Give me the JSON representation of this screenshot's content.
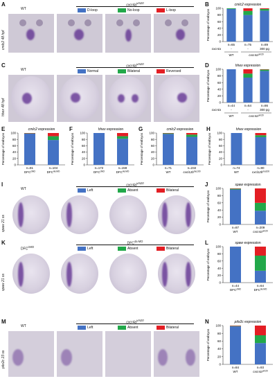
{
  "colors": {
    "blue": "#4472C4",
    "green": "#22A84A",
    "red": "#E31E24"
  },
  "panels": {
    "A": {
      "letter": "A",
      "ylabel": "cmlc2 48 hpf",
      "wt": "WT",
      "geno": "cxcr4a",
      "sup": "um20",
      "legend": [
        "D-loop",
        "No-loop",
        "L-loop"
      ]
    },
    "B": {
      "letter": "B"
    },
    "C": {
      "letter": "C",
      "ylabel": "hhex 48 hpf",
      "wt": "WT",
      "geno": "cxcr4a",
      "sup": "um20",
      "legend": [
        "Normal",
        "Bilateral",
        "Reversed"
      ]
    },
    "D": {
      "letter": "D"
    },
    "E": {
      "letter": "E"
    },
    "F": {
      "letter": "F"
    },
    "G": {
      "letter": "G"
    },
    "H": {
      "letter": "H"
    },
    "I": {
      "letter": "I",
      "ylabel": "spaw 21 ss",
      "wt": "WT",
      "geno": "cxcr4a",
      "sup": "um20",
      "legend": [
        "Left",
        "Absent",
        "Bilateral"
      ]
    },
    "J": {
      "letter": "J"
    },
    "K": {
      "letter": "K",
      "ylabel": "spaw 21 ss",
      "wt": "DFC",
      "wt_sup": "cMO",
      "geno": "DFC",
      "sup": "4a MO",
      "legend": [
        "Left",
        "Absent",
        "Bilateral"
      ]
    },
    "L": {
      "letter": "L"
    },
    "M": {
      "letter": "M",
      "ylabel": "pitx2c 23 ss",
      "wt": "WT",
      "geno": "cxcr4a",
      "sup": "um20",
      "legend": [
        "Left",
        "Absent",
        "Bilateral"
      ]
    },
    "N": {
      "letter": "N"
    }
  },
  "chart_data": [
    {
      "id": "B",
      "type": "bar",
      "title": "cmlc2 expression",
      "ylabel": "Percentage of embryos",
      "ylim": [
        0,
        100
      ],
      "yticks": [
        0,
        20,
        40,
        60,
        80,
        100
      ],
      "categories": [
        "n=65",
        "n=75",
        "n=89"
      ],
      "sublabels": [
        [
          "-",
          "-",
          "300 pg"
        ]
      ],
      "rowlabel": "cxcr4a",
      "groups": [
        {
          "label": "WT",
          "span": [
            0,
            0
          ]
        },
        {
          "label": "cxcr4a",
          "sup": "um20",
          "span": [
            1,
            2
          ]
        }
      ],
      "series": [
        {
          "name": "D-loop",
          "values": [
            98,
            80,
            93
          ]
        },
        {
          "name": "No-loop",
          "values": [
            2,
            12,
            5
          ]
        },
        {
          "name": "L-loop",
          "values": [
            0,
            8,
            2
          ]
        }
      ]
    },
    {
      "id": "D",
      "type": "bar",
      "title": "hhex expression",
      "ylabel": "Percentage of embryos",
      "ylim": [
        0,
        100
      ],
      "yticks": [
        0,
        20,
        40,
        60,
        80,
        100
      ],
      "categories": [
        "n=44",
        "n=64",
        "n=86"
      ],
      "sublabels": [
        [
          "-",
          "-",
          "300 pg"
        ]
      ],
      "rowlabel": "cxcr4a",
      "groups": [
        {
          "label": "WT",
          "span": [
            0,
            0
          ]
        },
        {
          "label": "cxcr4a",
          "sup": "um20",
          "span": [
            1,
            2
          ]
        }
      ],
      "series": [
        {
          "name": "Normal",
          "values": [
            100,
            75,
            95
          ]
        },
        {
          "name": "Bilateral",
          "values": [
            0,
            12,
            4
          ]
        },
        {
          "name": "Reversed",
          "values": [
            0,
            13,
            1
          ]
        }
      ]
    },
    {
      "id": "E",
      "type": "bar",
      "title": "cmlc2 expression",
      "ylabel": "Percentage of embryos",
      "ylim": [
        0,
        100
      ],
      "yticks": [
        0,
        20,
        40,
        60,
        80,
        100
      ],
      "categories": [
        "n=81",
        "n=104"
      ],
      "catlabels": [
        {
          "t": "DFC",
          "s": "cMO"
        },
        {
          "t": "DFC",
          "s": "4a MO"
        }
      ],
      "series": [
        {
          "values": [
            98,
            78
          ]
        },
        {
          "values": [
            1,
            12
          ]
        },
        {
          "values": [
            1,
            10
          ]
        }
      ]
    },
    {
      "id": "F",
      "type": "bar",
      "title": "hhex expression",
      "ylabel": "Percentage of embryos",
      "ylim": [
        0,
        100
      ],
      "yticks": [
        0,
        20,
        40,
        60,
        80,
        100
      ],
      "categories": [
        "n=172",
        "n=159"
      ],
      "catlabels": [
        {
          "t": "DFC",
          "s": "cMO"
        },
        {
          "t": "DFC",
          "s": "4a MO"
        }
      ],
      "series": [
        {
          "values": [
            100,
            82
          ]
        },
        {
          "values": [
            0,
            8
          ]
        },
        {
          "values": [
            0,
            10
          ]
        }
      ]
    },
    {
      "id": "G",
      "type": "bar",
      "title": "cmlc2 expression",
      "ylabel": "Percentage of embryos",
      "ylim": [
        0,
        100
      ],
      "yticks": [
        0,
        20,
        40,
        60,
        80,
        100
      ],
      "categories": [
        "n=71",
        "n=232"
      ],
      "catlabels": [
        {
          "t": "WT",
          "s": ""
        },
        {
          "t": "cxcl12b",
          "s": "mu100"
        }
      ],
      "series": [
        {
          "values": [
            97,
            88
          ]
        },
        {
          "values": [
            2,
            7
          ]
        },
        {
          "values": [
            1,
            5
          ]
        }
      ]
    },
    {
      "id": "H",
      "type": "bar",
      "title": "hhex expression",
      "ylabel": "Percentage of embryos",
      "ylim": [
        0,
        100
      ],
      "yticks": [
        0,
        20,
        40,
        60,
        80,
        100
      ],
      "categories": [
        "n=74",
        "n=90"
      ],
      "catlabels": [
        {
          "t": "WT",
          "s": ""
        },
        {
          "t": "cxcl12b",
          "s": "mu100"
        }
      ],
      "series": [
        {
          "values": [
            100,
            87
          ]
        },
        {
          "values": [
            0,
            6
          ]
        },
        {
          "values": [
            0,
            7
          ]
        }
      ]
    },
    {
      "id": "J",
      "type": "bar",
      "title": "spaw expression",
      "ylabel": "Percentage of embryos",
      "ylim": [
        0,
        100
      ],
      "yticks": [
        0,
        20,
        40,
        60,
        80,
        100
      ],
      "categories": [
        "n=87",
        "n=209"
      ],
      "catlabels": [
        {
          "t": "WT",
          "s": ""
        },
        {
          "t": "cxcr4a",
          "s": "um20"
        }
      ],
      "series": [
        {
          "values": [
            97,
            38
          ]
        },
        {
          "values": [
            2,
            22
          ]
        },
        {
          "values": [
            1,
            40
          ]
        }
      ]
    },
    {
      "id": "L",
      "type": "bar",
      "title": "spaw expression",
      "ylabel": "Percentage of embryos",
      "ylim": [
        0,
        100
      ],
      "yticks": [
        0,
        20,
        40,
        60,
        80,
        100
      ],
      "categories": [
        "n=44",
        "n=64"
      ],
      "catlabels": [
        {
          "t": "DFC",
          "s": "cMO"
        },
        {
          "t": "DFC",
          "s": "4a MO"
        }
      ],
      "series": [
        {
          "values": [
            100,
            33
          ]
        },
        {
          "values": [
            0,
            42
          ]
        },
        {
          "values": [
            0,
            25
          ]
        }
      ]
    },
    {
      "id": "N",
      "type": "bar",
      "title": "pitx2c expression",
      "ylabel": "Percentage of embryos",
      "ylim": [
        0,
        100
      ],
      "yticks": [
        0,
        20,
        40,
        60,
        80,
        100
      ],
      "categories": [
        "n=84",
        "n=93"
      ],
      "catlabels": [
        {
          "t": "WT",
          "s": ""
        },
        {
          "t": "cxcr4a",
          "s": "um20"
        }
      ],
      "series": [
        {
          "values": [
            98,
            55
          ]
        },
        {
          "values": [
            1,
            20
          ]
        },
        {
          "values": [
            1,
            25
          ]
        }
      ]
    }
  ]
}
